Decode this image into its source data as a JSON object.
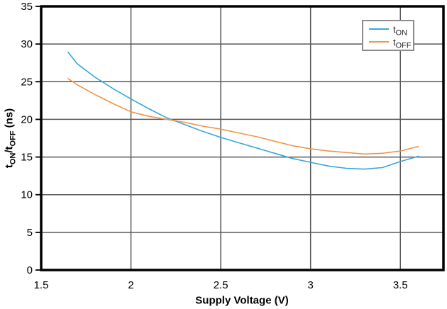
{
  "chart_data": {
    "type": "line",
    "title": "",
    "xlabel": "Supply Voltage (V)",
    "ylabel_parts": [
      {
        "text": "t",
        "sub": "ON"
      },
      {
        "text": "/t",
        "sub": "OFF"
      },
      {
        "text": " (ns)",
        "sub": ""
      }
    ],
    "xlim": [
      1.5,
      3.74
    ],
    "ylim": [
      0,
      35
    ],
    "x_ticks": [
      1.5,
      2,
      2.5,
      3,
      3.5
    ],
    "x_tick_labels": [
      "1.5",
      "2",
      "2.5",
      "3",
      "3.5"
    ],
    "y_ticks": [
      0,
      5,
      10,
      15,
      20,
      25,
      30,
      35
    ],
    "y_tick_labels": [
      "0",
      "5",
      "10",
      "15",
      "20",
      "25",
      "30",
      "35"
    ],
    "grid": true,
    "legend_position": "top-right",
    "x": [
      1.65,
      1.7,
      1.8,
      1.9,
      2.0,
      2.1,
      2.2,
      2.3,
      2.4,
      2.5,
      2.6,
      2.7,
      2.8,
      2.9,
      3.0,
      3.1,
      3.2,
      3.3,
      3.4,
      3.5,
      3.6
    ],
    "series": [
      {
        "name": "tON",
        "color": "#3aa6de",
        "values": [
          28.9,
          27.4,
          25.6,
          24.1,
          22.7,
          21.4,
          20.2,
          19.3,
          18.4,
          17.6,
          16.9,
          16.2,
          15.5,
          14.8,
          14.3,
          13.8,
          13.5,
          13.4,
          13.6,
          14.4,
          15.1
        ]
      },
      {
        "name": "tOFF",
        "color": "#f0954a",
        "values": [
          25.4,
          24.6,
          23.3,
          22.1,
          21.0,
          20.4,
          20.0,
          19.6,
          19.1,
          18.7,
          18.2,
          17.7,
          17.1,
          16.5,
          16.1,
          15.8,
          15.6,
          15.4,
          15.5,
          15.8,
          16.4
        ]
      }
    ],
    "colors": {
      "grid": "#58585b",
      "border": "#000000",
      "tick_text": "#000000",
      "legend_border": "#8c8c8c",
      "legend_text": "#231f20"
    }
  },
  "legend": {
    "items": [
      {
        "base": "t",
        "sub": "ON"
      },
      {
        "base": "t",
        "sub": "OFF"
      }
    ]
  }
}
